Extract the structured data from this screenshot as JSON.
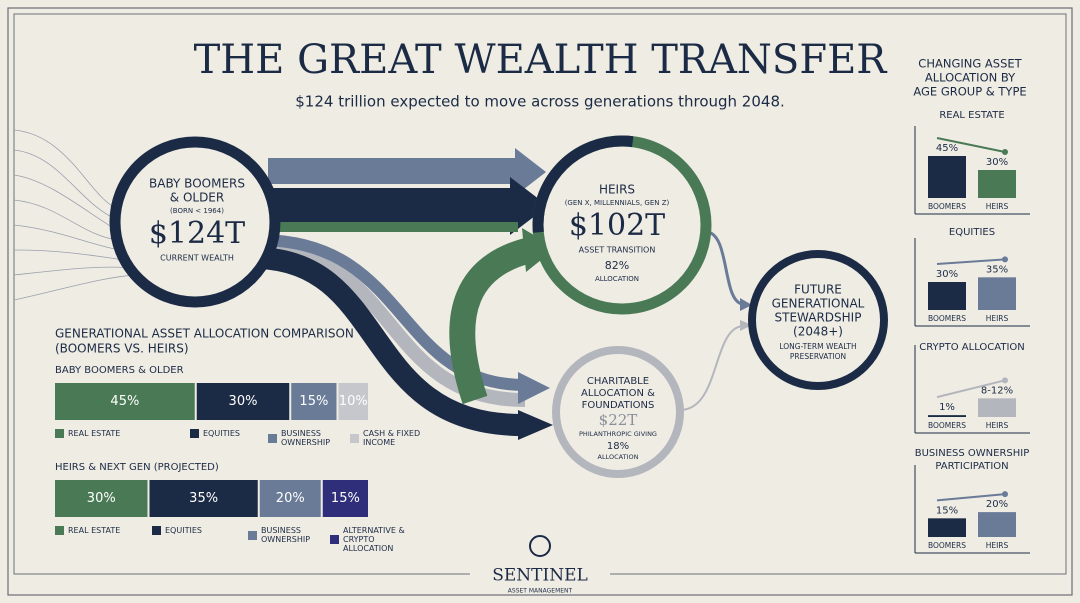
{
  "header": {
    "title": "THE GREAT WEALTH TRANSFER",
    "subtitle": "$124 trillion expected to move across generations through 2048."
  },
  "flow": {
    "source": {
      "lines": [
        "BABY BOOMERS",
        "& OLDER"
      ],
      "note": "(BORN < 1964)",
      "amount": "$124T",
      "caption": "CURRENT WEALTH"
    },
    "heirs": {
      "title": "HEIRS",
      "note": "(GEN X, MILLENNIALS, GEN Z)",
      "amount": "$102T",
      "caption": "ASSET TRANSITION",
      "share": "82%",
      "share_caption": "ALLOCATION"
    },
    "charity": {
      "lines": [
        "CHARITABLE",
        "ALLOCATION &",
        "FOUNDATIONS"
      ],
      "amount": "$22T",
      "caption": "PHILANTHROPIC GIVING",
      "share": "18%",
      "share_caption": "ALLOCATION"
    },
    "future": {
      "lines": [
        "FUTURE",
        "GENERATIONAL",
        "STEWARDSHIP",
        "(2048+)"
      ],
      "caption_lines": [
        "LONG-TERM WEALTH",
        "PRESERVATION"
      ]
    }
  },
  "side_panel": {
    "title": [
      "CHANGING ASSET",
      "ALLOCATION BY",
      "AGE GROUP & TYPE"
    ]
  },
  "brand": {
    "name": "SENTINEL",
    "tagline": "ASSET MANAGEMENT"
  },
  "chart_data": [
    {
      "type": "stacked-bar",
      "title": [
        "GENERATIONAL ASSET ALLOCATION COMPARISON",
        "(BOOMERS VS. HEIRS)"
      ],
      "categories": [
        "BABY BOOMERS & OLDER",
        "HEIRS & NEXT GEN (PROJECTED)"
      ],
      "xlim": [
        0,
        100
      ],
      "series": [
        {
          "name": "REAL ESTATE",
          "color": "#4a7a55",
          "values": [
            45,
            30
          ],
          "value_labels": [
            "45%",
            "30%"
          ]
        },
        {
          "name": "EQUITIES",
          "color": "#1c2b45",
          "values": [
            30,
            35
          ],
          "value_labels": [
            "30%",
            "35%"
          ]
        },
        {
          "name": "BUSINESS OWNERSHIP",
          "color": "#6a7b98",
          "values": [
            15,
            20
          ],
          "value_labels": [
            "15%",
            "20%"
          ]
        },
        {
          "name": "CASH & FIXED INCOME",
          "color": "#c5c7cd",
          "values": [
            10,
            null
          ],
          "value_labels": [
            "10%",
            null
          ]
        },
        {
          "name": "ALTERNATIVE & CRYPTO ALLOCATION",
          "color": "#2e2e7a",
          "values": [
            null,
            15
          ],
          "value_labels": [
            null,
            "15%"
          ]
        }
      ]
    },
    {
      "type": "bar",
      "title": "REAL ESTATE",
      "categories": [
        "BOOMERS",
        "HEIRS"
      ],
      "values": [
        45,
        30
      ],
      "value_labels": [
        "45%",
        "30%"
      ],
      "colors": [
        "#1c2b45",
        "#4a7a55"
      ],
      "ylim": [
        0,
        60
      ]
    },
    {
      "type": "bar",
      "title": "EQUITIES",
      "categories": [
        "BOOMERS",
        "HEIRS"
      ],
      "values": [
        30,
        35
      ],
      "value_labels": [
        "30%",
        "35%"
      ],
      "colors": [
        "#1c2b45",
        "#6a7b98"
      ],
      "ylim": [
        0,
        60
      ]
    },
    {
      "type": "bar",
      "title": "CRYPTO ALLOCATION",
      "categories": [
        "BOOMERS",
        "HEIRS"
      ],
      "values": [
        1,
        10
      ],
      "value_labels": [
        "1%",
        "8-12%"
      ],
      "colors": [
        "#1c2b45",
        "#b4b6bd"
      ],
      "ylim": [
        0,
        30
      ]
    },
    {
      "type": "bar",
      "title": [
        "BUSINESS OWNERSHIP",
        "PARTICIPATION"
      ],
      "categories": [
        "BOOMERS",
        "HEIRS"
      ],
      "values": [
        15,
        20
      ],
      "value_labels": [
        "15%",
        "20%"
      ],
      "colors": [
        "#1c2b45",
        "#6a7b98"
      ],
      "ylim": [
        0,
        45
      ]
    }
  ]
}
